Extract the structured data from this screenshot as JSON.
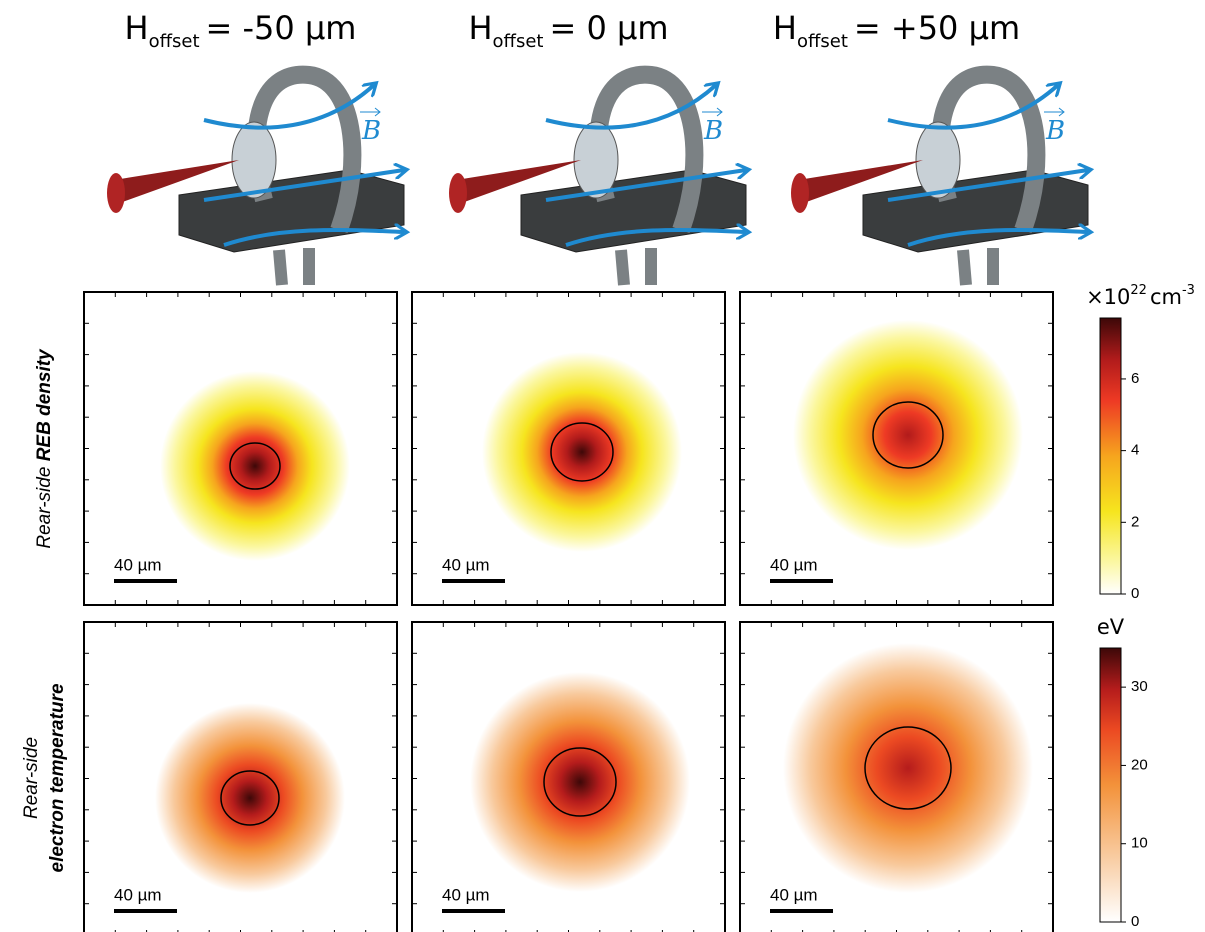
{
  "columns": [
    {
      "symbol": "H",
      "subscript": "offset",
      "value": "= -50 µm"
    },
    {
      "symbol": "H",
      "subscript": "offset",
      "value": "= 0 µm"
    },
    {
      "symbol": "H",
      "subscript": "offset",
      "value": "= +50 µm"
    }
  ],
  "vector_label": "B",
  "rows": [
    {
      "label_plain": "Rear-side ",
      "label_bold": "REB density"
    },
    {
      "label_plain": "Rear-side",
      "label_bold": "electron temperature"
    }
  ],
  "scale_bar": "40 µm",
  "colorbars": [
    {
      "label": "×10",
      "label_exp": "22",
      "unit": "cm",
      "unit_exp": "-3",
      "lim": [
        0,
        7.7
      ],
      "ticks": [
        0,
        2,
        4,
        6
      ]
    },
    {
      "label": "eV",
      "lim": [
        0,
        35
      ],
      "ticks": [
        0,
        10,
        20,
        30
      ]
    }
  ]
}
